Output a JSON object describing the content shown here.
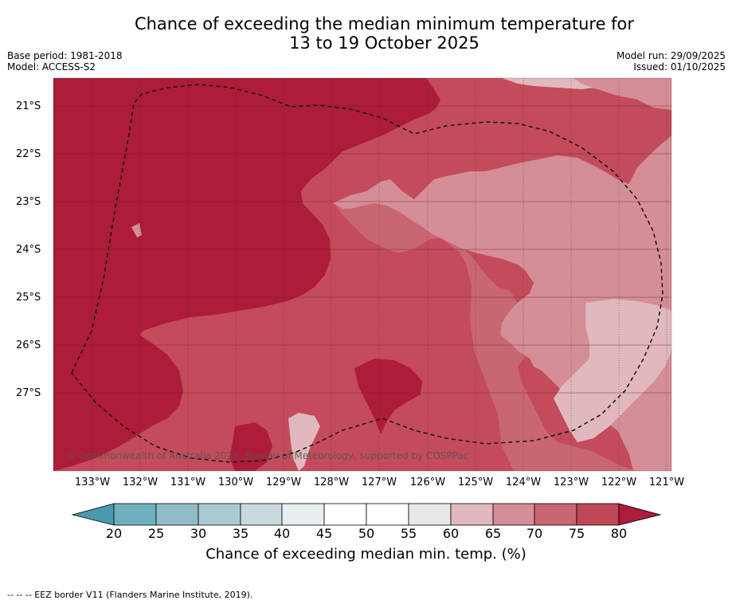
{
  "title_line1": "Chance of exceeding the median minimum temperature for",
  "title_line2": "13 to 19 October 2025",
  "meta": {
    "base_period": "Base period: 1981-2018",
    "model": "Model: ACCESS-S2",
    "model_run": "Model run: 29/09/2025",
    "issued": "Issued: 01/10/2025"
  },
  "copyright": "© Commonwealth of Australia 2025, Bureau of Meteorology, supported by COSPPac",
  "longitude_labels": [
    "133°W",
    "132°W",
    "131°W",
    "130°W",
    "129°W",
    "128°W",
    "127°W",
    "126°W",
    "125°W",
    "124°W",
    "123°W",
    "122°W",
    "121°W"
  ],
  "latitude_labels": [
    "21°S",
    "22°S",
    "23°S",
    "24°S",
    "25°S",
    "26°S",
    "27°S"
  ],
  "colorbar": {
    "ticks": [
      "20",
      "25",
      "30",
      "35",
      "40",
      "45",
      "50",
      "55",
      "60",
      "65",
      "70",
      "75",
      "80"
    ],
    "label": "Chance of exceeding median min. temp. (%)",
    "colors": [
      "#4a9aad",
      "#6fb0bf",
      "#8fbcc7",
      "#aacbd1",
      "#c9dadf",
      "#e8eff1",
      "#ffffff",
      "#ffffff",
      "#e8e8e8",
      "#e0b8be",
      "#d58d97",
      "#c86672",
      "#bd4755",
      "#ad1c3a"
    ]
  },
  "footnote": "--  --  -- EEZ border V11 (Flanders Marine Institute, 2019)."
}
